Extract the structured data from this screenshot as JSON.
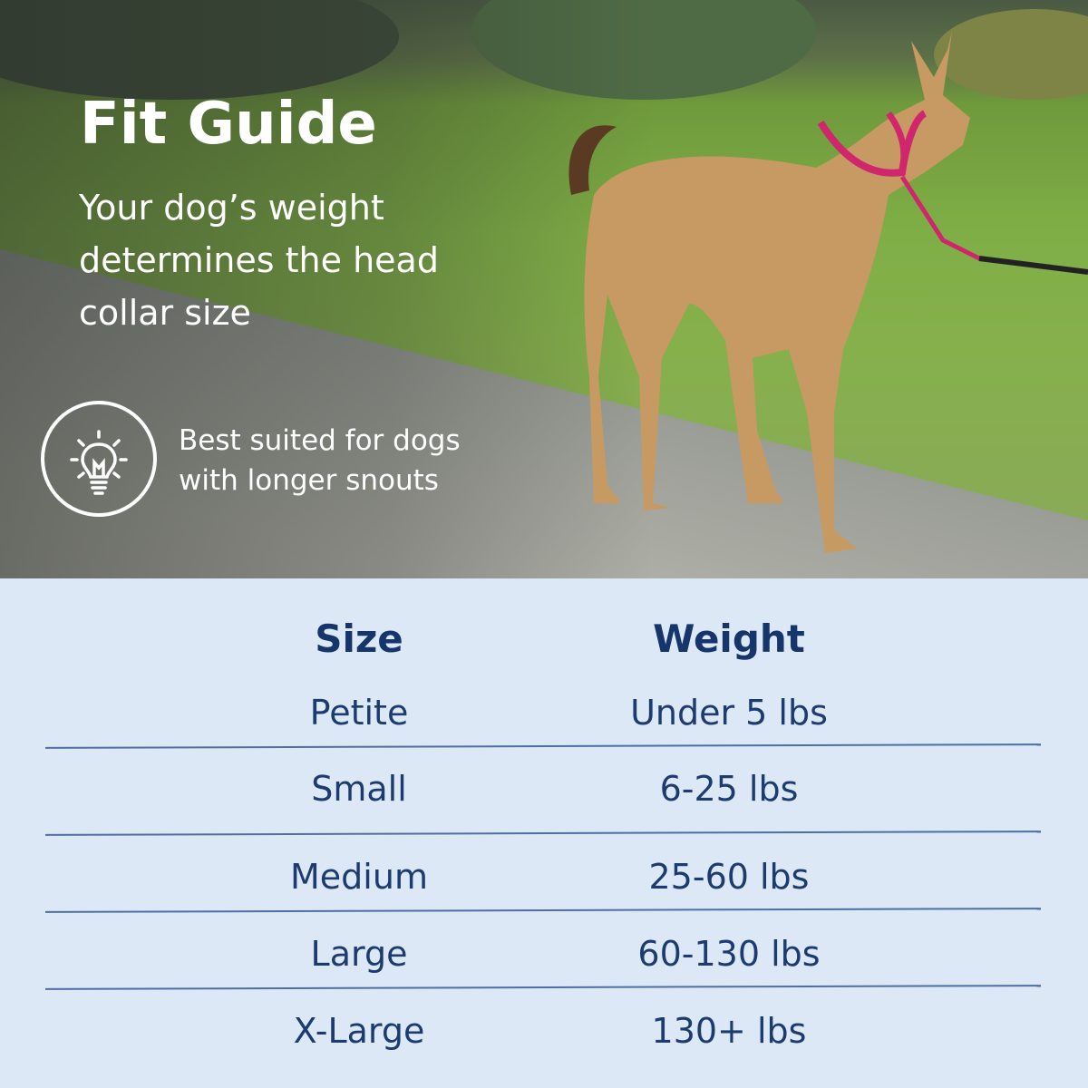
{
  "hero": {
    "title": "Fit Guide",
    "subtitle": "Your dog’s weight determines the head collar size",
    "tip_icon": "lightbulb-icon",
    "tip_text": "Best suited for dogs with longer snouts"
  },
  "table": {
    "headers": [
      "Size",
      "Weight"
    ],
    "rows": [
      {
        "size": "Petite",
        "weight": "Under 5 lbs"
      },
      {
        "size": "Small",
        "weight": "6-25 lbs"
      },
      {
        "size": "Medium",
        "weight": "25-60 lbs"
      },
      {
        "size": "Large",
        "weight": "60-130 lbs"
      },
      {
        "size": "X-Large",
        "weight": "130+ lbs"
      }
    ]
  },
  "colors": {
    "table_bg": "#dde8f6",
    "text": "#1c3b6f",
    "rule": "#4d6fa3",
    "collar": "#d0266e"
  }
}
